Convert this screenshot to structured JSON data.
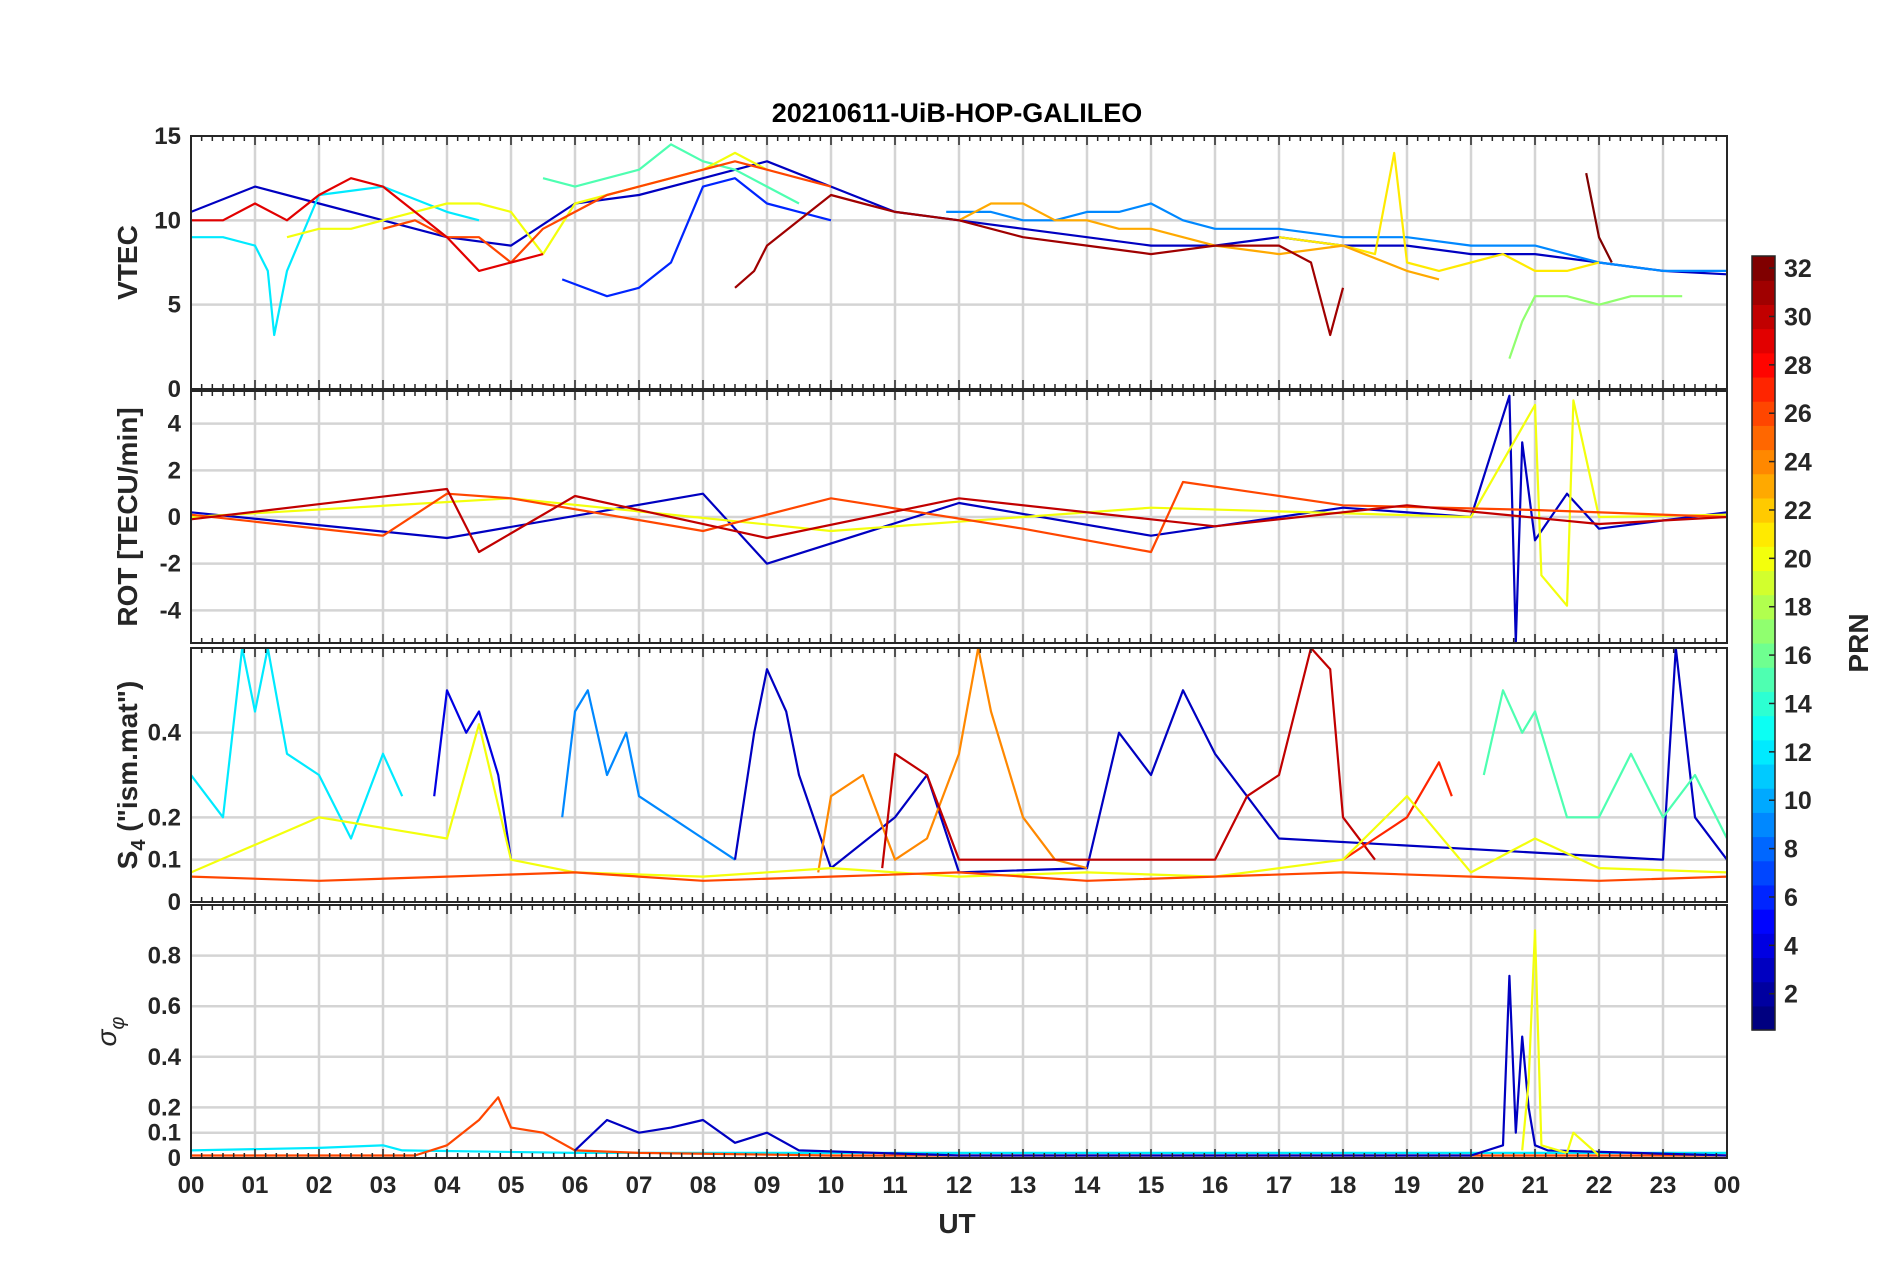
{
  "chart_data": {
    "type": "line",
    "title": "20210611-UiB-HOP-GALILEO",
    "xlabel": "UT",
    "xlim": [
      0,
      24
    ],
    "xtick_labels": [
      "00",
      "01",
      "02",
      "03",
      "04",
      "05",
      "06",
      "07",
      "08",
      "09",
      "10",
      "11",
      "12",
      "13",
      "14",
      "15",
      "16",
      "17",
      "18",
      "19",
      "20",
      "21",
      "22",
      "23",
      "00"
    ],
    "colorbar": {
      "label": "PRN",
      "range": [
        1,
        32
      ],
      "tick_labels": [
        "2",
        "4",
        "6",
        "8",
        "10",
        "12",
        "14",
        "16",
        "18",
        "20",
        "22",
        "24",
        "26",
        "28",
        "30",
        "32"
      ]
    },
    "panels": [
      {
        "name": "vtec",
        "ylabel": "VTEC",
        "ylim": [
          0,
          15
        ],
        "yticks": [
          0,
          5,
          10,
          15
        ],
        "ytick_labels": [
          "0",
          "5",
          "10",
          "15"
        ],
        "series": [
          {
            "prn": 3,
            "x": [
              0,
              1,
              2,
              3,
              4,
              5,
              6,
              7,
              8,
              9,
              10,
              11,
              12,
              13,
              14,
              15,
              16,
              17,
              18,
              19,
              20,
              21,
              22,
              23,
              24
            ],
            "y": [
              10.5,
              12,
              11,
              10,
              9,
              8.5,
              11,
              11.5,
              12.5,
              13.5,
              12,
              10.5,
              10,
              9.5,
              9,
              8.5,
              8.5,
              9,
              8.5,
              8.5,
              8,
              8,
              7.5,
              7,
              6.8
            ]
          },
          {
            "prn": 6,
            "x": [
              5.8,
              6.5,
              7,
              7.5,
              8,
              8.5,
              9,
              9.5,
              10
            ],
            "y": [
              6.5,
              5.5,
              6,
              7.5,
              12,
              12.5,
              11,
              10.5,
              10
            ]
          },
          {
            "prn": 9,
            "x": [
              11.8,
              12.5,
              13,
              13.5,
              14,
              14.5,
              15,
              15.5,
              16,
              17,
              18,
              19,
              20,
              21,
              22,
              23,
              24
            ],
            "y": [
              10.5,
              10.5,
              10,
              10,
              10.5,
              10.5,
              11,
              10,
              9.5,
              9.5,
              9,
              9,
              8.5,
              8.5,
              7.5,
              7,
              7
            ]
          },
          {
            "prn": 12,
            "x": [
              0,
              0.5,
              1,
              1.2,
              1.3,
              1.5,
              2,
              3,
              4,
              4.5
            ],
            "y": [
              9,
              9,
              8.5,
              7,
              3.2,
              7,
              11.5,
              12,
              10.5,
              10
            ]
          },
          {
            "prn": 15,
            "x": [
              5.5,
              6,
              7,
              7.5,
              8,
              8.5,
              9,
              9.5
            ],
            "y": [
              12.5,
              12,
              13,
              14.5,
              13.5,
              13,
              12,
              11
            ]
          },
          {
            "prn": 17,
            "x": [
              20.6,
              20.8,
              21,
              21.5,
              22,
              22.5,
              23,
              23.3
            ],
            "y": [
              1.8,
              4,
              5.5,
              5.5,
              5,
              5.5,
              5.5,
              5.5
            ]
          },
          {
            "prn": 20,
            "x": [
              1.5,
              2,
              2.5,
              3,
              3.5,
              4,
              4.5,
              5,
              5.5,
              6,
              6.5,
              7,
              7.5,
              8,
              8.5,
              9
            ],
            "y": [
              9,
              9.5,
              9.5,
              10,
              10.5,
              11,
              11,
              10.5,
              8,
              11,
              11.5,
              12,
              12.5,
              13,
              14,
              13
            ]
          },
          {
            "prn": 21,
            "x": [
              17,
              18,
              18.5,
              18.8,
              19,
              19.5,
              20,
              20.5,
              21,
              21.5,
              22
            ],
            "y": [
              9,
              8.5,
              8,
              14,
              7.5,
              7,
              7.5,
              8,
              7,
              7,
              7.5
            ]
          },
          {
            "prn": 23,
            "x": [
              12,
              12.5,
              13,
              13.5,
              14,
              14.5,
              15,
              15.5,
              16,
              17,
              18,
              19,
              19.5
            ],
            "y": [
              10,
              11,
              11,
              10,
              10,
              9.5,
              9.5,
              9,
              8.5,
              8,
              8.5,
              7,
              6.5
            ]
          },
          {
            "prn": 26,
            "x": [
              3,
              3.5,
              4,
              4.5,
              5,
              5.5,
              6,
              6.5,
              7,
              7.5,
              8,
              8.5,
              9,
              9.5,
              10
            ],
            "y": [
              9.5,
              10,
              9,
              9,
              7.5,
              9.5,
              10.5,
              11.5,
              12,
              12.5,
              13,
              13.5,
              13,
              12.5,
              12
            ]
          },
          {
            "prn": 29,
            "x": [
              0,
              0.5,
              1,
              1.5,
              2,
              2.5,
              3,
              3.5,
              4,
              4.5,
              5,
              5.5
            ],
            "y": [
              10,
              10,
              11,
              10,
              11.5,
              12.5,
              12,
              10.5,
              9,
              7,
              7.5,
              8
            ]
          },
          {
            "prn": 31,
            "x": [
              8.5,
              8.8,
              9,
              9.5,
              10,
              10.5,
              11,
              12,
              13,
              14,
              15,
              16,
              17,
              17.5,
              17.8,
              18
            ],
            "y": [
              6,
              7,
              8.5,
              10,
              11.5,
              11,
              10.5,
              10,
              9,
              8.5,
              8,
              8.5,
              8.5,
              7.5,
              3.2,
              6
            ]
          },
          {
            "prn": 32,
            "x": [
              21.8,
              22,
              22.2
            ],
            "y": [
              12.8,
              9,
              7.5
            ]
          }
        ]
      },
      {
        "name": "rot",
        "ylabel": "ROT [TECU/min]",
        "ylim": [
          -5.4,
          5.4
        ],
        "yticks": [
          -4,
          -2,
          0,
          2,
          4
        ],
        "ytick_labels": [
          "-4",
          "-2",
          "0",
          "2",
          "4"
        ],
        "series": [
          {
            "prn": 3,
            "x": [
              0,
              4,
              8,
              9,
              12,
              15,
              18,
              20,
              20.6,
              20.7,
              20.8,
              21,
              21.5,
              22,
              24
            ],
            "y": [
              0.2,
              -0.9,
              1,
              -2,
              0.6,
              -0.8,
              0.4,
              0,
              5.2,
              -5.4,
              3.2,
              -1,
              1,
              -0.5,
              0.2
            ]
          },
          {
            "prn": 20,
            "x": [
              0,
              5,
              10,
              15,
              20,
              21,
              21.1,
              21.5,
              21.6,
              22,
              24
            ],
            "y": [
              0,
              0.8,
              -0.6,
              0.4,
              0,
              4.8,
              -2.5,
              -3.8,
              5,
              0,
              0.1
            ]
          },
          {
            "prn": 26,
            "x": [
              0,
              3,
              4,
              5,
              8,
              10,
              13,
              15,
              15.5,
              18,
              21,
              24
            ],
            "y": [
              0.1,
              -0.8,
              1,
              0.8,
              -0.6,
              0.8,
              -0.5,
              -1.5,
              1.5,
              0.5,
              0.3,
              0
            ]
          },
          {
            "prn": 30,
            "x": [
              0,
              4,
              4.5,
              6,
              9,
              12,
              16,
              19,
              22,
              24
            ],
            "y": [
              -0.1,
              1.2,
              -1.5,
              0.9,
              -0.9,
              0.8,
              -0.4,
              0.5,
              -0.3,
              0
            ]
          }
        ]
      },
      {
        "name": "s4",
        "ylabel": "S4 (\"ism.mat\")",
        "ylabel_main": "S",
        "ylabel_sub": "4",
        "ylabel_rest": " (\"ism.mat\")",
        "ylim": [
          0,
          0.6
        ],
        "yticks": [
          0,
          0.1,
          0.2,
          0.4
        ],
        "ytick_labels": [
          "0",
          "0.1",
          "0.2",
          "0.4"
        ],
        "series": [
          {
            "prn": 12,
            "x": [
              0,
              0.5,
              0.8,
              1,
              1.2,
              1.5,
              2,
              2.5,
              3,
              3.3
            ],
            "y": [
              0.3,
              0.2,
              0.6,
              0.45,
              0.6,
              0.35,
              0.3,
              0.15,
              0.35,
              0.25
            ]
          },
          {
            "prn": 4,
            "x": [
              3.8,
              4,
              4.3,
              4.5,
              4.8,
              5
            ],
            "y": [
              0.25,
              0.5,
              0.4,
              0.45,
              0.3,
              0.1
            ]
          },
          {
            "prn": 9,
            "x": [
              5.8,
              6,
              6.2,
              6.5,
              6.8,
              7,
              7.5,
              8,
              8.5
            ],
            "y": [
              0.2,
              0.45,
              0.5,
              0.3,
              0.4,
              0.25,
              0.2,
              0.15,
              0.1
            ]
          },
          {
            "prn": 3,
            "x": [
              8.5,
              8.8,
              9,
              9.3,
              9.5,
              10,
              11,
              11.5,
              12,
              14,
              14.5,
              15,
              15.5,
              16,
              17,
              23,
              23.2,
              23.5,
              24
            ],
            "y": [
              0.1,
              0.4,
              0.55,
              0.45,
              0.3,
              0.08,
              0.2,
              0.3,
              0.07,
              0.08,
              0.4,
              0.3,
              0.5,
              0.35,
              0.15,
              0.1,
              0.6,
              0.2,
              0.1
            ]
          },
          {
            "prn": 24,
            "x": [
              9.8,
              10,
              10.5,
              11,
              11.5,
              12,
              12.3,
              12.5,
              13,
              13.5,
              14
            ],
            "y": [
              0.07,
              0.25,
              0.3,
              0.1,
              0.15,
              0.35,
              0.6,
              0.45,
              0.2,
              0.1,
              0.08
            ]
          },
          {
            "prn": 30,
            "x": [
              10.8,
              11,
              11.5,
              12,
              16,
              16.5,
              17,
              17.5,
              17.8,
              18,
              18.5
            ],
            "y": [
              0.08,
              0.35,
              0.3,
              0.1,
              0.1,
              0.25,
              0.3,
              0.6,
              0.55,
              0.2,
              0.1
            ]
          },
          {
            "prn": 27,
            "x": [
              18,
              18.5,
              19,
              19.5,
              19.7
            ],
            "y": [
              0.1,
              0.15,
              0.2,
              0.33,
              0.25
            ]
          },
          {
            "prn": 15,
            "x": [
              20.2,
              20.5,
              20.8,
              21,
              21.5,
              22,
              22.5,
              23,
              23.5,
              24
            ],
            "y": [
              0.3,
              0.5,
              0.4,
              0.45,
              0.2,
              0.2,
              0.35,
              0.2,
              0.3,
              0.15
            ]
          },
          {
            "prn": 20,
            "x": [
              0,
              2,
              4,
              4.5,
              5,
              6,
              8,
              10,
              12,
              14,
              16,
              18,
              19,
              20,
              21,
              22,
              24
            ],
            "y": [
              0.07,
              0.2,
              0.15,
              0.42,
              0.1,
              0.07,
              0.06,
              0.08,
              0.06,
              0.07,
              0.06,
              0.1,
              0.25,
              0.07,
              0.15,
              0.08,
              0.07
            ]
          },
          {
            "prn": 26,
            "x": [
              0,
              2,
              4,
              6,
              8,
              10,
              12,
              14,
              16,
              18,
              20,
              22,
              24
            ],
            "y": [
              0.06,
              0.05,
              0.06,
              0.07,
              0.05,
              0.06,
              0.07,
              0.05,
              0.06,
              0.07,
              0.06,
              0.05,
              0.06
            ]
          }
        ]
      },
      {
        "name": "sigma_phi",
        "ylabel": "σφ",
        "ylabel_main": "σ",
        "ylabel_sub": "φ",
        "ylim": [
          0,
          1
        ],
        "yticks": [
          0,
          0.1,
          0.2,
          0.4,
          0.6,
          0.8
        ],
        "ytick_labels": [
          "0",
          "0.1",
          "0.2",
          "0.4",
          "0.6",
          "0.8"
        ],
        "series": [
          {
            "prn": 12,
            "x": [
              0,
              2,
              3,
              3.3,
              6,
              10,
              14,
              18,
              22,
              24
            ],
            "y": [
              0.03,
              0.04,
              0.05,
              0.03,
              0.02,
              0.02,
              0.02,
              0.02,
              0.02,
              0.02
            ]
          },
          {
            "prn": 26,
            "x": [
              0,
              3.5,
              4,
              4.5,
              4.8,
              5,
              5.5,
              6,
              7,
              10,
              15,
              20,
              24
            ],
            "y": [
              0.01,
              0.01,
              0.05,
              0.15,
              0.24,
              0.12,
              0.1,
              0.03,
              0.02,
              0.01,
              0.01,
              0.01,
              0.01
            ]
          },
          {
            "prn": 3,
            "x": [
              6,
              6.5,
              7,
              7.5,
              8,
              8.5,
              9,
              9.5,
              12,
              20,
              20.5,
              20.6,
              20.7,
              20.8,
              20.9,
              21,
              21.2,
              24
            ],
            "y": [
              0.03,
              0.15,
              0.1,
              0.12,
              0.15,
              0.06,
              0.1,
              0.03,
              0.01,
              0.01,
              0.05,
              0.72,
              0.1,
              0.48,
              0.2,
              0.05,
              0.03,
              0.01
            ]
          },
          {
            "prn": 20,
            "x": [
              20.8,
              20.9,
              21,
              21.1,
              21.5,
              21.6,
              22
            ],
            "y": [
              0.03,
              0.3,
              0.9,
              0.05,
              0.02,
              0.1,
              0.01
            ]
          }
        ]
      }
    ]
  }
}
